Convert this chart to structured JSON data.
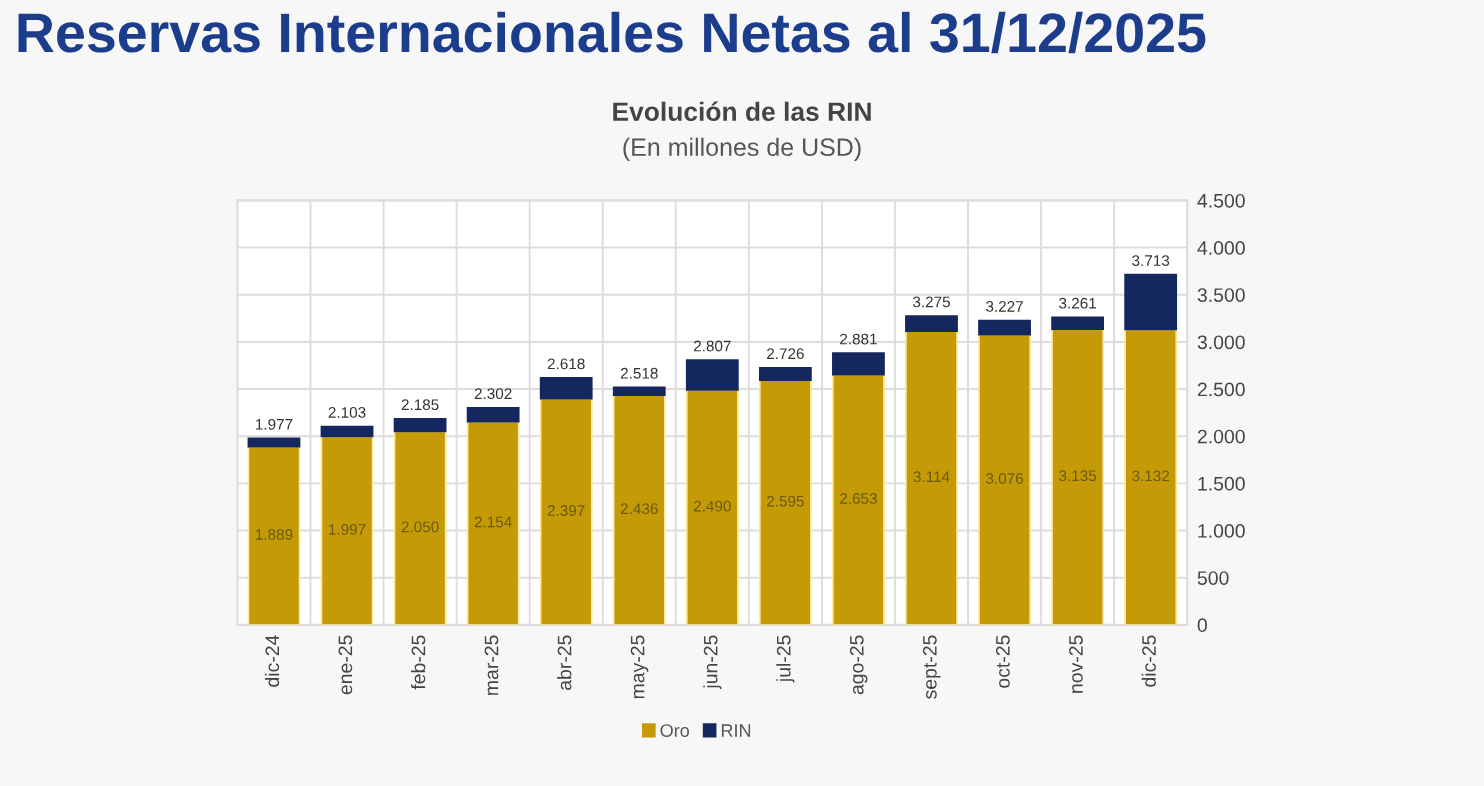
{
  "chart_data": {
    "type": "bar",
    "title": "Reservas Internacionales Netas al 31/12/2025",
    "subtitle": "Evolución de las RIN",
    "annotations": [
      "(En millones de USD)"
    ],
    "categories": [
      "dic-24",
      "ene-25",
      "feb-25",
      "mar-25",
      "abr-25",
      "may-25",
      "jun-25",
      "jul-25",
      "ago-25",
      "sept-25",
      "oct-25",
      "nov-25",
      "dic-25"
    ],
    "stacked": true,
    "series": [
      {
        "name": "Oro",
        "color": "#c49a06",
        "values": [
          1889,
          1997,
          2050,
          2154,
          2397,
          2436,
          2490,
          2595,
          2653,
          3114,
          3076,
          3135,
          3132
        ],
        "value_labels": [
          "1.889",
          "1.997",
          "2.050",
          "2.154",
          "2.397",
          "2.436",
          "2.490",
          "2.595",
          "2.653",
          "3.114",
          "3.076",
          "3.135",
          "3.132"
        ]
      },
      {
        "name": "RIN",
        "color": "#14285f",
        "values": [
          88,
          106,
          135,
          148,
          221,
          82,
          317,
          131,
          228,
          161,
          151,
          126,
          581
        ]
      }
    ],
    "totals": [
      "1.977",
      "2.103",
      "2.185",
      "2.302",
      "2.618",
      "2.518",
      "2.807",
      "2.726",
      "2.881",
      "3.275",
      "3.227",
      "3.261",
      "3.713"
    ],
    "ylim": [
      0,
      4500
    ],
    "yticks": [
      0,
      {
        "value": 500,
        "label": "500"
      },
      {
        "value": 1000,
        "label": "1.000"
      },
      {
        "value": 1500,
        "label": "1.500"
      },
      {
        "value": 2000,
        "label": "2.000"
      },
      {
        "value": 2500,
        "label": "2.500"
      },
      {
        "value": 3000,
        "label": "3.000"
      },
      {
        "value": 3500,
        "label": "3.500"
      },
      {
        "value": 4000,
        "label": "4.000"
      },
      {
        "value": 4500,
        "label": "4.500"
      }
    ],
    "grid": true,
    "legend": "bottom"
  }
}
